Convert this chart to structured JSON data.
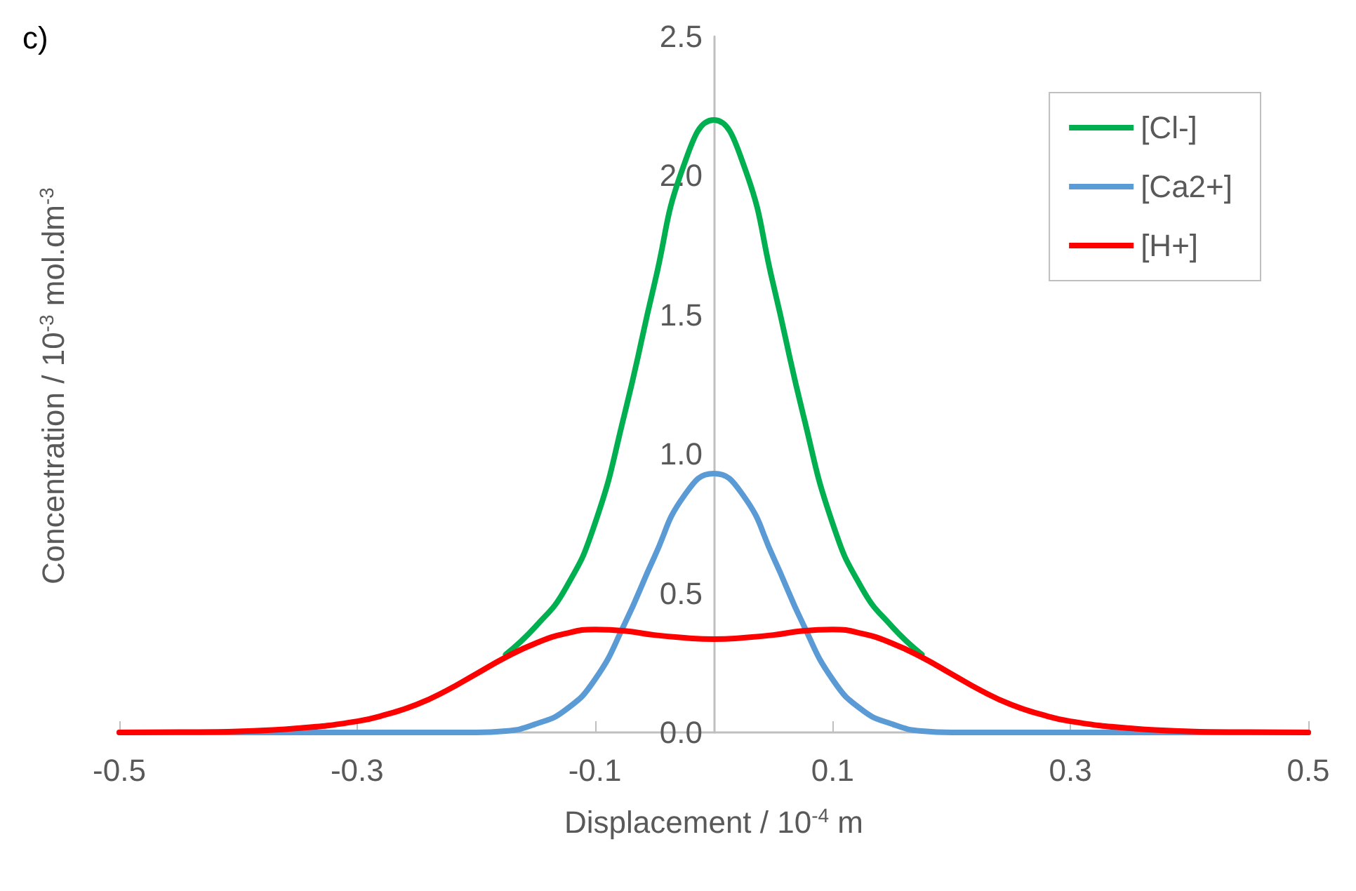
{
  "chart_data": {
    "type": "line",
    "xlabel": "Displacement / 10$^{-4}$ m",
    "ylabel": "Concentration / 10$^{-3}$ mol.dm$^{-3}$",
    "annotations": [
      "c)"
    ],
    "x": [
      -0.5,
      -0.45,
      -0.4,
      -0.35,
      -0.3,
      -0.275,
      -0.25,
      -0.225,
      -0.2,
      -0.175,
      -0.15,
      -0.125,
      -0.1,
      -0.075,
      -0.05,
      -0.025,
      0,
      0.025,
      0.05,
      0.075,
      0.1,
      0.125,
      0.15,
      0.175,
      0.2,
      0.225,
      0.25,
      0.275,
      0.3,
      0.35,
      0.4,
      0.45,
      0.5
    ],
    "series": [
      {
        "name": "[Cl-]",
        "color": "#00b050",
        "values": [
          null,
          null,
          null,
          null,
          null,
          null,
          null,
          null,
          null,
          0.28,
          0.38,
          0.515,
          0.75,
          1.145,
          1.61,
          2.04,
          2.2,
          2.04,
          1.61,
          1.145,
          0.75,
          0.515,
          0.38,
          0.28,
          null,
          null,
          null,
          null,
          null,
          null,
          null,
          null,
          null
        ]
      },
      {
        "name": "[Ca2+]",
        "color": "#5b9bd5",
        "values": [
          0,
          0,
          0,
          0,
          0,
          0,
          0,
          0,
          0,
          0.005,
          0.03,
          0.08,
          0.19,
          0.39,
          0.63,
          0.85,
          0.93,
          0.85,
          0.63,
          0.39,
          0.19,
          0.08,
          0.03,
          0.005,
          0,
          0,
          0,
          0,
          0,
          0,
          0,
          0,
          0
        ]
      },
      {
        "name": "[H+]",
        "color": "#ff0000",
        "values": [
          0,
          0.001,
          0.004,
          0.015,
          0.04,
          0.065,
          0.1,
          0.15,
          0.21,
          0.27,
          0.32,
          0.355,
          0.37,
          0.365,
          0.35,
          0.34,
          0.335,
          0.34,
          0.35,
          0.365,
          0.37,
          0.355,
          0.32,
          0.27,
          0.21,
          0.15,
          0.1,
          0.065,
          0.04,
          0.015,
          0.004,
          0.001,
          0
        ]
      }
    ],
    "xlim": [
      -0.5,
      0.5
    ],
    "xticks": [
      -0.5,
      -0.3,
      -0.1,
      0.1,
      0.3,
      0.5
    ],
    "ylim": [
      0,
      2.5
    ],
    "yticks": [
      {
        "value": 0,
        "label": "0.0"
      },
      0.5,
      {
        "value": 1,
        "label": "1.0"
      },
      1.5,
      {
        "value": 2,
        "label": "2.0"
      },
      2.5
    ],
    "grid": false,
    "legend": "top right",
    "marker": "none",
    "line_style": "solid"
  }
}
